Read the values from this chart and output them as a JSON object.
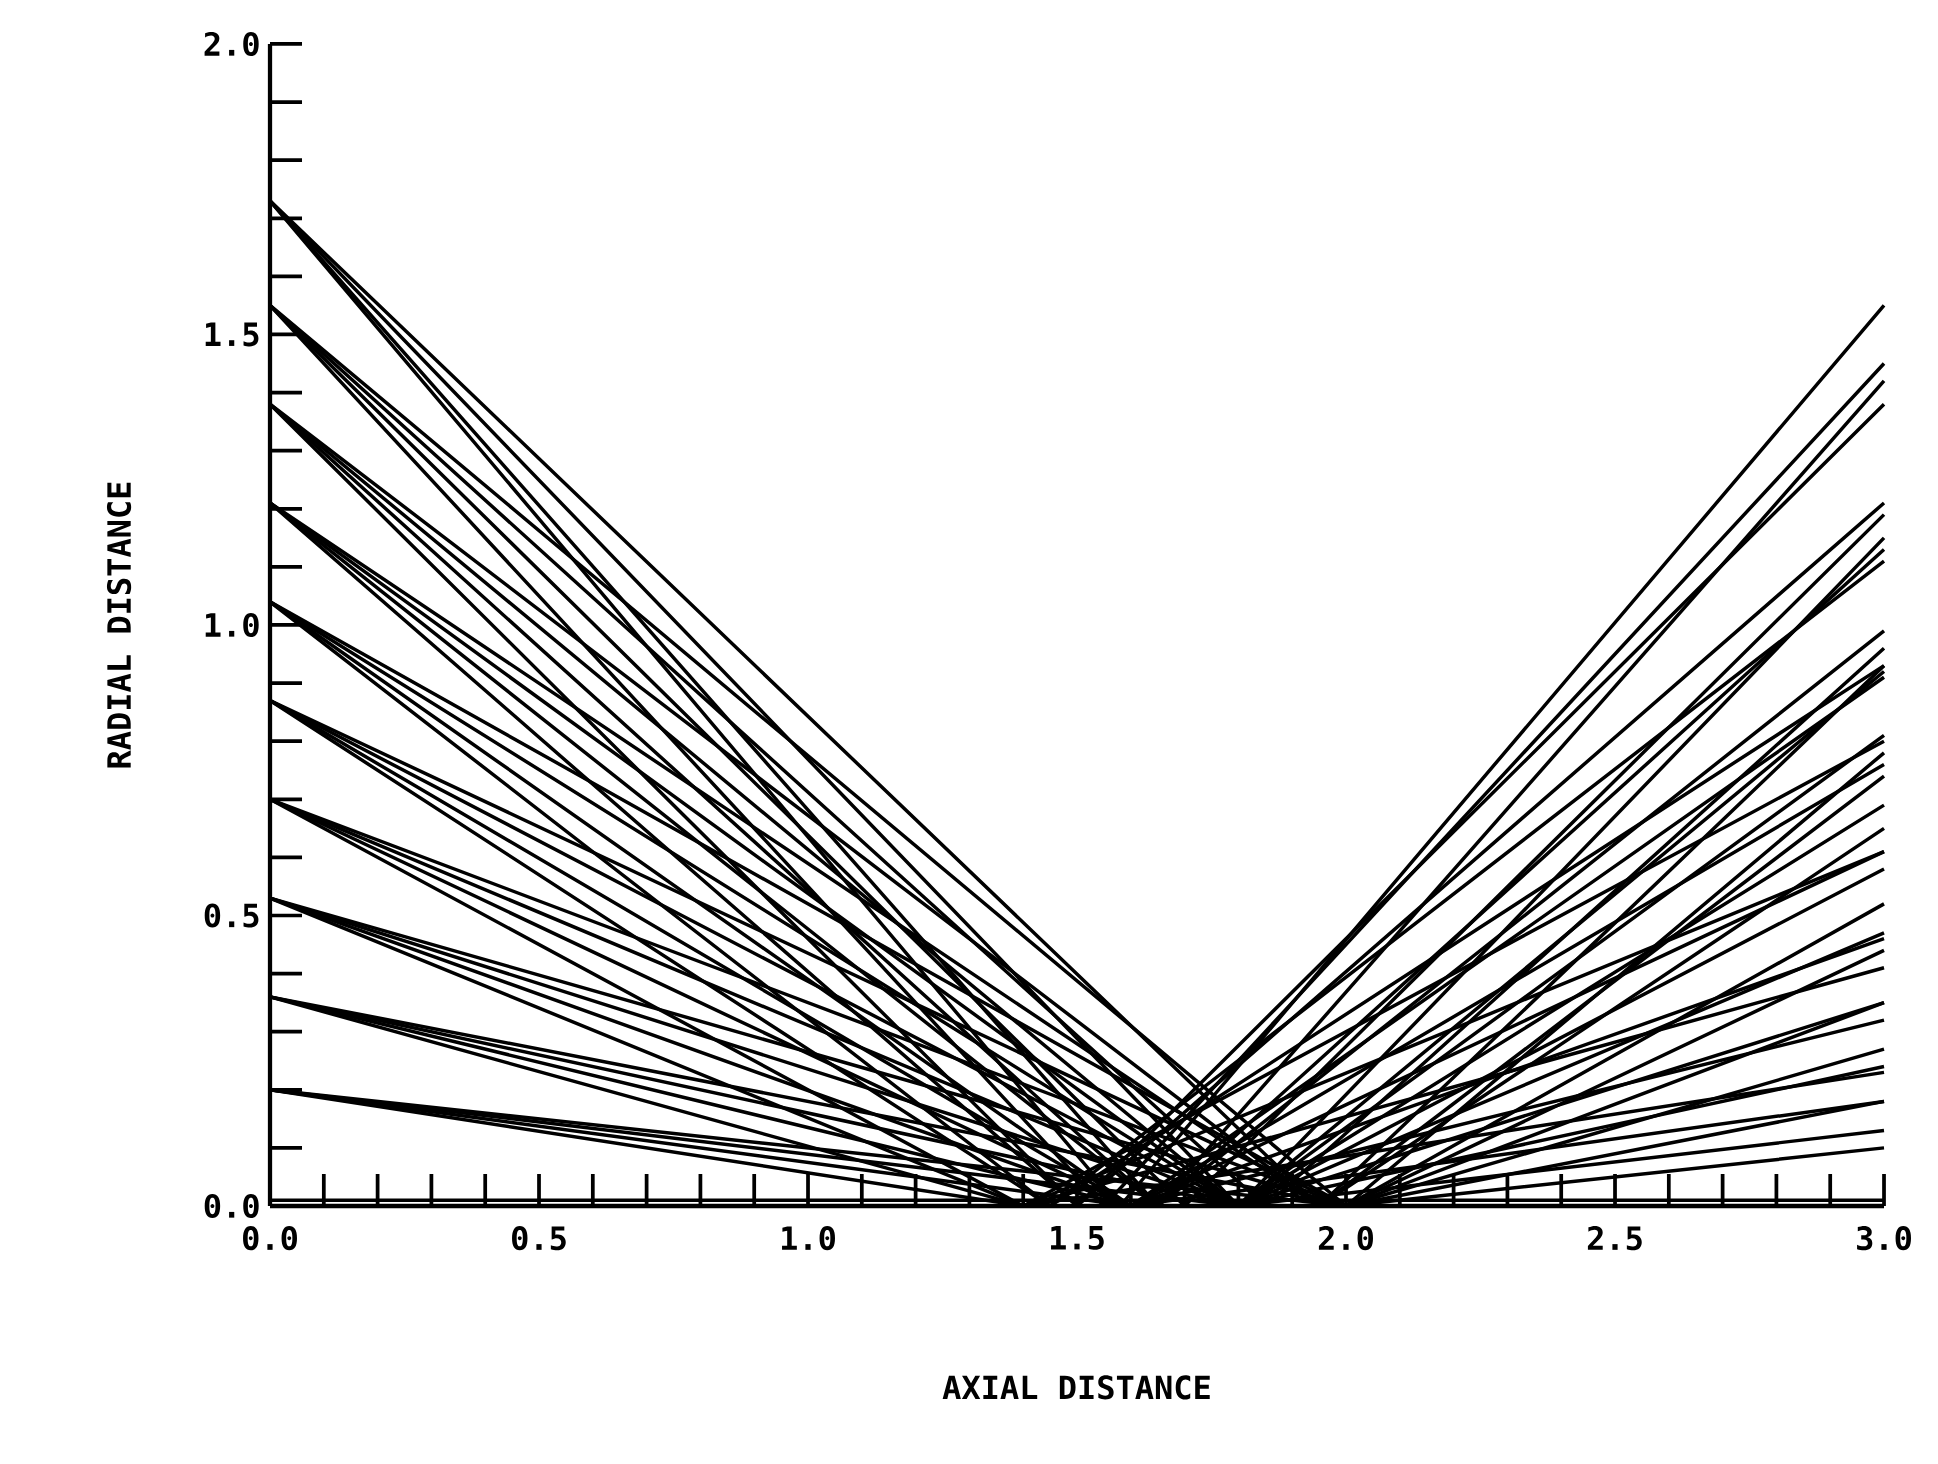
{
  "chart_data": {
    "type": "line",
    "xlabel": "AXIAL DISTANCE",
    "ylabel": "RADIAL DISTANCE",
    "color": "#000000",
    "marker": "none",
    "line_style": "solid",
    "grid": false,
    "xlim": [
      0,
      3
    ],
    "ylim": [
      0,
      2
    ],
    "xticks": [
      {
        "value": 0,
        "label": "0.0"
      },
      {
        "value": 0.1,
        "label": null
      },
      {
        "value": 0.2,
        "label": null
      },
      {
        "value": 0.3,
        "label": null
      },
      {
        "value": 0.4,
        "label": null
      },
      {
        "value": 0.5,
        "label": "0.5"
      },
      {
        "value": 0.6,
        "label": null
      },
      {
        "value": 0.7,
        "label": null
      },
      {
        "value": 0.8,
        "label": null
      },
      {
        "value": 0.9,
        "label": null
      },
      {
        "value": 1,
        "label": "1.0"
      },
      {
        "value": 1.1,
        "label": null
      },
      {
        "value": 1.2,
        "label": null
      },
      {
        "value": 1.3,
        "label": null
      },
      {
        "value": 1.4,
        "label": null
      },
      {
        "value": 1.5,
        "label": "1.5"
      },
      {
        "value": 1.6,
        "label": null
      },
      {
        "value": 1.7,
        "label": null
      },
      {
        "value": 1.8,
        "label": null
      },
      {
        "value": 1.9,
        "label": null
      },
      {
        "value": 2,
        "label": "2.0"
      },
      {
        "value": 2.1,
        "label": null
      },
      {
        "value": 2.2,
        "label": null
      },
      {
        "value": 2.3,
        "label": null
      },
      {
        "value": 2.4,
        "label": null
      },
      {
        "value": 2.5,
        "label": "2.5"
      },
      {
        "value": 2.6,
        "label": null
      },
      {
        "value": 2.7,
        "label": null
      },
      {
        "value": 2.8,
        "label": null
      },
      {
        "value": 2.9,
        "label": null
      },
      {
        "value": 3,
        "label": "3.0"
      }
    ],
    "yticks": [
      {
        "value": 0,
        "label": "0.0"
      },
      {
        "value": 0.1,
        "label": null
      },
      {
        "value": 0.2,
        "label": null
      },
      {
        "value": 0.3,
        "label": null
      },
      {
        "value": 0.4,
        "label": null
      },
      {
        "value": 0.5,
        "label": "0.5"
      },
      {
        "value": 0.6,
        "label": null
      },
      {
        "value": 0.7,
        "label": null
      },
      {
        "value": 0.8,
        "label": null
      },
      {
        "value": 0.9,
        "label": null
      },
      {
        "value": 1,
        "label": "1.0"
      },
      {
        "value": 1.1,
        "label": null
      },
      {
        "value": 1.2,
        "label": null
      },
      {
        "value": 1.3,
        "label": null
      },
      {
        "value": 1.4,
        "label": null
      },
      {
        "value": 1.5,
        "label": "1.5"
      },
      {
        "value": 1.6,
        "label": null
      },
      {
        "value": 1.7,
        "label": null
      },
      {
        "value": 1.8,
        "label": null
      },
      {
        "value": 1.9,
        "label": null
      },
      {
        "value": 2,
        "label": "2.0"
      }
    ],
    "series": [
      {
        "x": [
          0,
          3
        ],
        "values": [
          0.01,
          0.01
        ]
      },
      {
        "x": [
          0,
          1.58,
          3
        ],
        "values": [
          1.73,
          0,
          1.55
        ]
      },
      {
        "x": [
          0,
          1.65,
          3
        ],
        "values": [
          1.73,
          0,
          1.42
        ]
      },
      {
        "x": [
          0,
          1.8,
          3
        ],
        "values": [
          1.73,
          0,
          1.15
        ]
      },
      {
        "x": [
          0,
          1.95,
          3
        ],
        "values": [
          1.73,
          0,
          0.93
        ]
      },
      {
        "x": [
          0,
          1.55,
          3
        ],
        "values": [
          1.55,
          0,
          1.45
        ]
      },
      {
        "x": [
          0,
          1.7,
          3
        ],
        "values": [
          1.55,
          0,
          1.19
        ]
      },
      {
        "x": [
          0,
          1.85,
          3
        ],
        "values": [
          1.55,
          0,
          0.96
        ]
      },
      {
        "x": [
          0,
          2.0,
          3
        ],
        "values": [
          1.55,
          0,
          0.78
        ]
      },
      {
        "x": [
          0,
          1.5,
          3
        ],
        "values": [
          1.38,
          0,
          1.38
        ]
      },
      {
        "x": [
          0,
          1.65,
          3
        ],
        "values": [
          1.38,
          0,
          1.13
        ]
      },
      {
        "x": [
          0,
          1.8,
          3
        ],
        "values": [
          1.38,
          0,
          0.92
        ]
      },
      {
        "x": [
          0,
          1.95,
          3
        ],
        "values": [
          1.38,
          0,
          0.74
        ]
      },
      {
        "x": [
          0,
          1.5,
          3
        ],
        "values": [
          1.21,
          0,
          1.21
        ]
      },
      {
        "x": [
          0,
          1.65,
          3
        ],
        "values": [
          1.21,
          0,
          0.99
        ]
      },
      {
        "x": [
          0,
          1.8,
          3
        ],
        "values": [
          1.21,
          0,
          0.81
        ]
      },
      {
        "x": [
          0,
          1.95,
          3
        ],
        "values": [
          1.21,
          0,
          0.65
        ]
      },
      {
        "x": [
          0,
          1.45,
          3
        ],
        "values": [
          1.04,
          0,
          1.11
        ]
      },
      {
        "x": [
          0,
          1.6,
          3
        ],
        "values": [
          1.04,
          0,
          0.91
        ]
      },
      {
        "x": [
          0,
          1.8,
          3
        ],
        "values": [
          1.04,
          0,
          0.69
        ]
      },
      {
        "x": [
          0,
          2.0,
          3
        ],
        "values": [
          1.04,
          0,
          0.52
        ]
      },
      {
        "x": [
          0,
          1.45,
          3
        ],
        "values": [
          0.87,
          0,
          0.93
        ]
      },
      {
        "x": [
          0,
          1.6,
          3
        ],
        "values": [
          0.87,
          0,
          0.76
        ]
      },
      {
        "x": [
          0,
          1.8,
          3
        ],
        "values": [
          0.87,
          0,
          0.58
        ]
      },
      {
        "x": [
          0,
          2.0,
          3
        ],
        "values": [
          0.87,
          0,
          0.44
        ]
      },
      {
        "x": [
          0,
          1.4,
          3
        ],
        "values": [
          0.7,
          0,
          0.8
        ]
      },
      {
        "x": [
          0,
          1.6,
          3
        ],
        "values": [
          0.7,
          0,
          0.61
        ]
      },
      {
        "x": [
          0,
          1.8,
          3
        ],
        "values": [
          0.7,
          0,
          0.47
        ]
      },
      {
        "x": [
          0,
          2.0,
          3
        ],
        "values": [
          0.7,
          0,
          0.35
        ]
      },
      {
        "x": [
          0,
          1.4,
          3
        ],
        "values": [
          0.53,
          0,
          0.61
        ]
      },
      {
        "x": [
          0,
          1.6,
          3
        ],
        "values": [
          0.53,
          0,
          0.46
        ]
      },
      {
        "x": [
          0,
          1.8,
          3
        ],
        "values": [
          0.53,
          0,
          0.35
        ]
      },
      {
        "x": [
          0,
          2.0,
          3
        ],
        "values": [
          0.53,
          0,
          0.27
        ]
      },
      {
        "x": [
          0,
          1.4,
          3
        ],
        "values": [
          0.36,
          0,
          0.41
        ]
      },
      {
        "x": [
          0,
          1.6,
          3
        ],
        "values": [
          0.36,
          0,
          0.32
        ]
      },
      {
        "x": [
          0,
          1.8,
          3
        ],
        "values": [
          0.36,
          0,
          0.24
        ]
      },
      {
        "x": [
          0,
          2.0,
          3
        ],
        "values": [
          0.36,
          0,
          0.18
        ]
      },
      {
        "x": [
          0,
          1.4,
          3
        ],
        "values": [
          0.2,
          0,
          0.23
        ]
      },
      {
        "x": [
          0,
          1.6,
          3
        ],
        "values": [
          0.2,
          0,
          0.18
        ]
      },
      {
        "x": [
          0,
          1.8,
          3
        ],
        "values": [
          0.2,
          0,
          0.13
        ]
      },
      {
        "x": [
          0,
          2.0,
          3
        ],
        "values": [
          0.2,
          0,
          0.1
        ]
      }
    ]
  }
}
